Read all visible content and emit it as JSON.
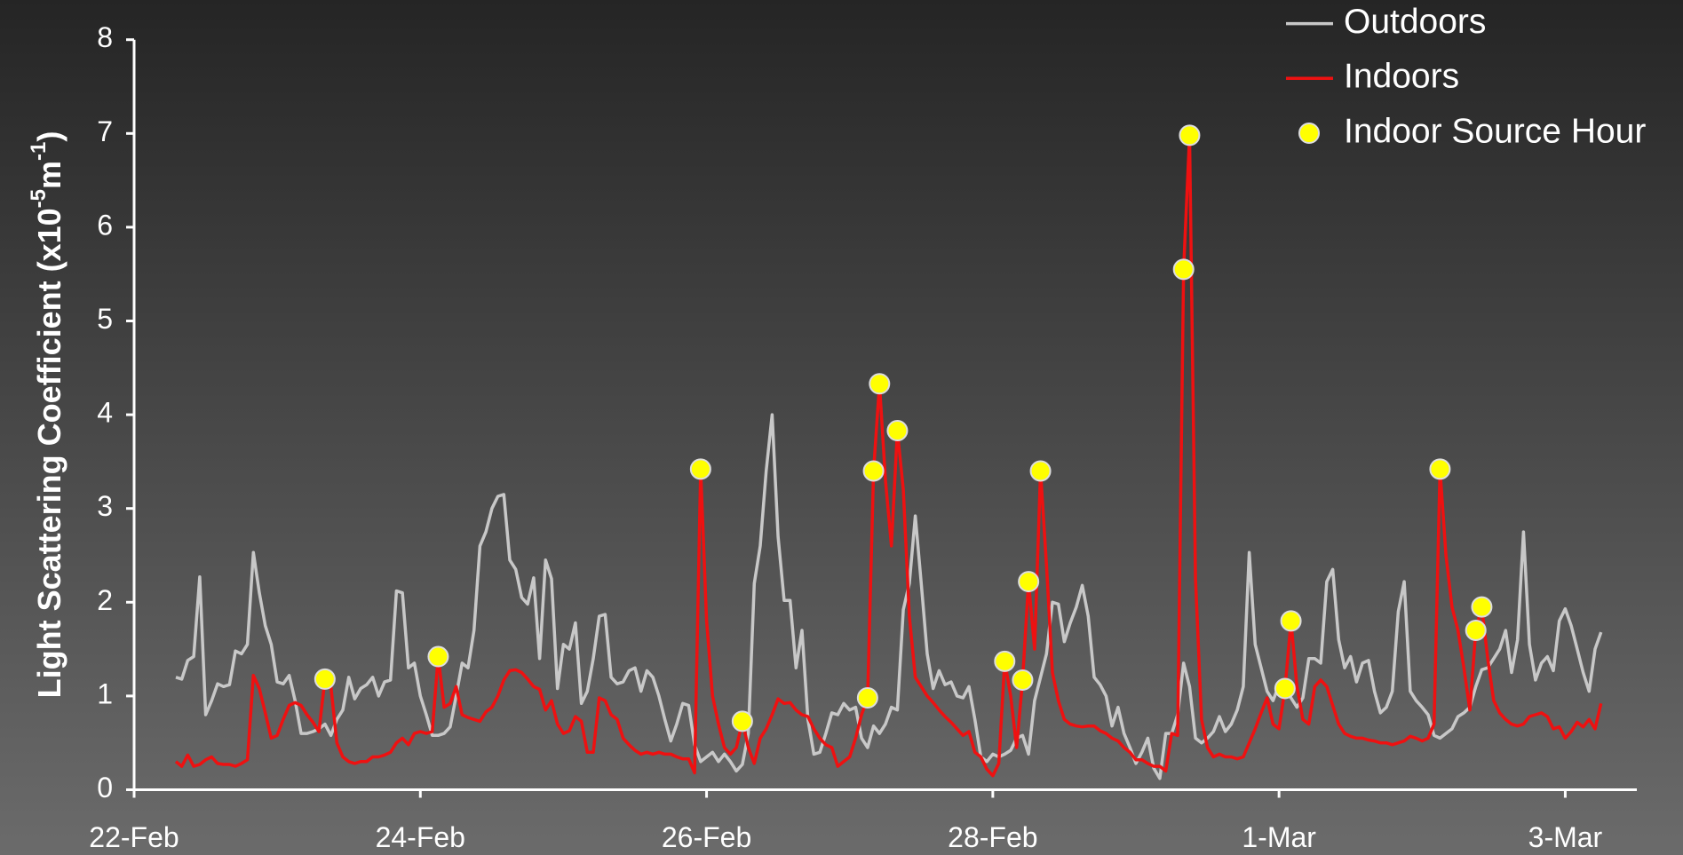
{
  "chart_data": {
    "type": "line",
    "ylabel_parts": [
      "Light Scattering Coefficient (x10",
      "-5",
      "m",
      "-1",
      ")"
    ],
    "xlim": [
      0,
      252
    ],
    "xticks": [
      {
        "value": 0,
        "label": "22-Feb"
      },
      {
        "value": 48,
        "label": "24-Feb"
      },
      {
        "value": 96,
        "label": "26-Feb"
      },
      {
        "value": 144,
        "label": "28-Feb"
      },
      {
        "value": 192,
        "label": "1-Mar"
      },
      {
        "value": 240,
        "label": "3-Mar"
      }
    ],
    "ylim": [
      0,
      8
    ],
    "yticks": [
      0,
      1,
      2,
      3,
      4,
      5,
      6,
      7,
      8
    ],
    "legend": "top-right",
    "x": [
      7,
      8,
      9,
      10,
      11,
      12,
      13,
      14,
      15,
      16,
      17,
      18,
      19,
      20,
      21,
      22,
      23,
      24,
      25,
      26,
      27,
      28,
      29,
      30,
      31,
      32,
      33,
      34,
      35,
      36,
      37,
      38,
      39,
      40,
      41,
      42,
      43,
      44,
      45,
      46,
      47,
      48,
      49,
      50,
      51,
      52,
      53,
      54,
      55,
      56,
      57,
      58,
      59,
      60,
      61,
      62,
      63,
      64,
      65,
      66,
      67,
      68,
      69,
      70,
      71,
      72,
      73,
      74,
      75,
      76,
      77,
      78,
      79,
      80,
      81,
      82,
      83,
      84,
      85,
      86,
      87,
      88,
      89,
      90,
      91,
      92,
      93,
      94,
      95,
      96,
      97,
      98,
      99,
      100,
      101,
      102,
      103,
      104,
      105,
      106,
      107,
      108,
      109,
      110,
      111,
      112,
      113,
      114,
      115,
      116,
      117,
      118,
      119,
      120,
      121,
      122,
      123,
      124,
      125,
      126,
      127,
      128,
      129,
      130,
      131,
      132,
      133,
      134,
      135,
      136,
      137,
      138,
      139,
      140,
      141,
      142,
      143,
      144,
      145,
      146,
      147,
      148,
      149,
      150,
      151,
      152,
      153,
      154,
      155,
      156,
      157,
      158,
      159,
      160,
      161,
      162,
      163,
      164,
      165,
      166,
      167,
      168,
      169,
      170,
      171,
      172,
      173,
      174,
      175,
      176,
      177,
      178,
      179,
      180,
      181,
      182,
      183,
      184,
      185,
      186,
      187,
      188,
      189,
      190,
      191,
      192,
      193,
      194,
      195,
      196,
      197,
      198,
      199,
      200,
      201,
      202,
      203,
      204,
      205,
      206,
      207,
      208,
      209,
      210,
      211,
      212,
      213,
      214,
      215,
      216,
      217,
      218,
      219,
      220,
      221,
      222,
      223,
      224,
      225,
      226,
      227,
      228,
      229,
      230,
      231,
      232,
      233,
      234,
      235,
      236,
      237,
      238,
      239,
      240,
      241,
      242,
      243,
      244,
      245,
      246
    ],
    "series": [
      {
        "name": "Outdoors",
        "type": "line",
        "color": "#c8c8c8",
        "values": [
          1.2,
          1.18,
          1.38,
          1.42,
          2.27,
          0.8,
          0.95,
          1.13,
          1.1,
          1.12,
          1.48,
          1.45,
          1.55,
          2.53,
          2.1,
          1.75,
          1.55,
          1.15,
          1.13,
          1.22,
          0.95,
          0.6,
          0.6,
          0.62,
          0.65,
          0.7,
          0.58,
          0.75,
          0.85,
          1.2,
          0.97,
          1.08,
          1.12,
          1.2,
          1.0,
          1.15,
          1.17,
          2.12,
          2.1,
          1.3,
          1.35,
          1.0,
          0.8,
          0.58,
          0.58,
          0.6,
          0.67,
          1.0,
          1.35,
          1.3,
          1.7,
          2.6,
          2.75,
          3.0,
          3.13,
          3.15,
          2.45,
          2.35,
          2.05,
          1.98,
          2.26,
          1.4,
          2.45,
          2.25,
          1.08,
          1.55,
          1.5,
          1.78,
          0.92,
          1.05,
          1.4,
          1.85,
          1.87,
          1.2,
          1.13,
          1.15,
          1.27,
          1.3,
          1.05,
          1.27,
          1.2,
          1.0,
          0.75,
          0.52,
          0.7,
          0.92,
          0.9,
          0.48,
          0.3,
          0.35,
          0.4,
          0.3,
          0.38,
          0.3,
          0.2,
          0.27,
          0.6,
          2.2,
          2.6,
          3.4,
          4.0,
          2.7,
          2.02,
          2.02,
          1.3,
          1.7,
          0.75,
          0.38,
          0.4,
          0.6,
          0.82,
          0.8,
          0.92,
          0.85,
          0.88,
          0.55,
          0.45,
          0.68,
          0.6,
          0.7,
          0.88,
          0.85,
          1.92,
          2.2,
          2.92,
          2.2,
          1.45,
          1.08,
          1.27,
          1.12,
          1.15,
          1.0,
          0.98,
          1.1,
          0.75,
          0.35,
          0.3,
          0.38,
          0.35,
          0.38,
          0.42,
          0.55,
          0.58,
          0.38,
          0.95,
          1.2,
          1.45,
          2.0,
          1.98,
          1.58,
          1.78,
          1.95,
          2.18,
          1.85,
          1.2,
          1.12,
          1.0,
          0.68,
          0.88,
          0.6,
          0.45,
          0.28,
          0.4,
          0.55,
          0.23,
          0.12,
          0.6,
          0.6,
          0.8,
          1.35,
          1.1,
          0.55,
          0.5,
          0.55,
          0.62,
          0.78,
          0.62,
          0.7,
          0.85,
          1.1,
          2.53,
          1.55,
          1.3,
          1.05,
          0.95,
          1.12,
          1.1,
          0.98,
          0.88,
          0.98,
          1.4,
          1.4,
          1.35,
          2.22,
          2.35,
          1.6,
          1.3,
          1.42,
          1.15,
          1.35,
          1.38,
          1.05,
          0.82,
          0.88,
          1.05,
          1.9,
          2.22,
          1.05,
          0.95,
          0.88,
          0.8,
          0.58,
          0.55,
          0.6,
          0.65,
          0.78,
          0.82,
          0.88,
          1.1,
          1.28,
          1.3,
          1.4,
          1.5,
          1.7,
          1.25,
          1.6,
          2.75,
          1.55,
          1.17,
          1.35,
          1.42,
          1.27,
          1.8,
          1.93,
          1.75,
          1.5,
          1.25,
          1.05,
          1.5,
          1.68
        ]
      },
      {
        "name": "Indoors",
        "type": "line",
        "color": "#ee1111",
        "values": [
          0.3,
          0.25,
          0.37,
          0.25,
          0.27,
          0.32,
          0.35,
          0.28,
          0.27,
          0.27,
          0.25,
          0.28,
          0.32,
          1.22,
          1.08,
          0.82,
          0.55,
          0.58,
          0.75,
          0.9,
          0.93,
          0.9,
          0.8,
          0.72,
          0.62,
          1.18,
          1.1,
          0.5,
          0.35,
          0.3,
          0.28,
          0.3,
          0.3,
          0.35,
          0.35,
          0.37,
          0.4,
          0.5,
          0.55,
          0.48,
          0.6,
          0.62,
          0.6,
          0.62,
          1.42,
          0.88,
          0.92,
          1.1,
          0.8,
          0.77,
          0.75,
          0.73,
          0.83,
          0.88,
          1.0,
          1.17,
          1.27,
          1.28,
          1.25,
          1.18,
          1.1,
          1.07,
          0.85,
          0.95,
          0.7,
          0.6,
          0.63,
          0.78,
          0.73,
          0.4,
          0.4,
          0.98,
          0.95,
          0.8,
          0.75,
          0.55,
          0.48,
          0.42,
          0.38,
          0.4,
          0.38,
          0.4,
          0.38,
          0.38,
          0.35,
          0.33,
          0.33,
          0.18,
          3.42,
          1.8,
          1.0,
          0.7,
          0.45,
          0.38,
          0.45,
          0.73,
          0.45,
          0.28,
          0.55,
          0.65,
          0.8,
          0.97,
          0.92,
          0.93,
          0.85,
          0.8,
          0.78,
          0.65,
          0.55,
          0.48,
          0.45,
          0.25,
          0.3,
          0.35,
          0.55,
          0.8,
          0.98,
          3.4,
          4.33,
          3.3,
          2.6,
          3.83,
          3.2,
          1.85,
          1.2,
          1.1,
          1.0,
          0.93,
          0.85,
          0.78,
          0.72,
          0.65,
          0.58,
          0.62,
          0.4,
          0.35,
          0.22,
          0.15,
          0.28,
          1.37,
          1.0,
          0.45,
          1.17,
          2.22,
          1.5,
          3.4,
          2.4,
          1.25,
          0.95,
          0.75,
          0.7,
          0.68,
          0.67,
          0.68,
          0.68,
          0.63,
          0.6,
          0.55,
          0.52,
          0.45,
          0.4,
          0.32,
          0.32,
          0.28,
          0.25,
          0.25,
          0.2,
          0.6,
          0.58,
          5.55,
          6.98,
          2.25,
          0.75,
          0.45,
          0.35,
          0.38,
          0.35,
          0.35,
          0.33,
          0.35,
          0.5,
          0.65,
          0.82,
          0.98,
          0.7,
          0.65,
          1.08,
          1.8,
          1.1,
          0.75,
          0.7,
          1.1,
          1.17,
          1.1,
          0.9,
          0.7,
          0.6,
          0.57,
          0.55,
          0.55,
          0.53,
          0.52,
          0.5,
          0.5,
          0.48,
          0.5,
          0.52,
          0.57,
          0.55,
          0.52,
          0.55,
          0.7,
          3.42,
          2.5,
          1.95,
          1.7,
          1.3,
          0.85,
          1.7,
          1.95,
          1.4,
          0.95,
          0.82,
          0.75,
          0.7,
          0.68,
          0.7,
          0.78,
          0.8,
          0.82,
          0.78,
          0.65,
          0.67,
          0.55,
          0.62,
          0.72,
          0.67,
          0.75,
          0.65,
          0.92
        ]
      },
      {
        "name": "Indoor Source Hour",
        "type": "scatter",
        "color": "#ffff00",
        "x": [
          32,
          51,
          95,
          102,
          123,
          124,
          125,
          128,
          146,
          149,
          150,
          152,
          176,
          177,
          193,
          194,
          219,
          225,
          226
        ],
        "values": [
          1.18,
          1.42,
          3.42,
          0.73,
          0.98,
          3.4,
          4.33,
          3.83,
          1.37,
          1.17,
          2.22,
          3.4,
          5.55,
          6.98,
          1.08,
          1.8,
          3.42,
          1.7,
          1.95
        ]
      }
    ]
  }
}
